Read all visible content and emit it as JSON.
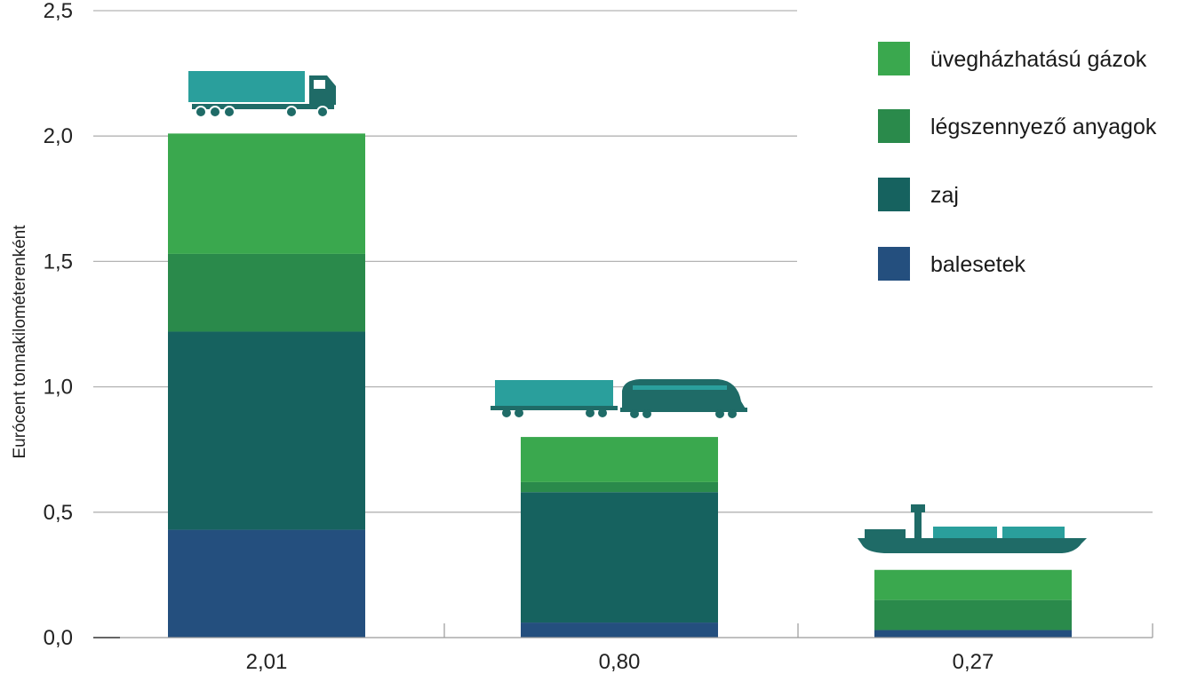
{
  "chart_data": {
    "type": "bar",
    "stacked": true,
    "ylabel": "Eurócent tonnakilométerenként",
    "ylim": [
      0,
      2.5
    ],
    "yticks": [
      "0,0",
      "0,5",
      "1,0",
      "1,5",
      "2,0",
      "2,5"
    ],
    "categories": [
      "2,01",
      "0,80",
      "0,27"
    ],
    "category_icons": [
      "truck-icon",
      "train-icon",
      "ship-icon"
    ],
    "grid": true,
    "legend_position": "top-right",
    "series": [
      {
        "name": "balesetek",
        "color": "#244f7e",
        "values": [
          0.43,
          0.06,
          0.03
        ]
      },
      {
        "name": "zaj",
        "color": "#16625f",
        "values": [
          0.79,
          0.52,
          0.0
        ]
      },
      {
        "name": "légszennyező anyagok",
        "color": "#2a8a4b",
        "values": [
          0.31,
          0.04,
          0.12
        ]
      },
      {
        "name": "üvegházhatású gázok",
        "color": "#3aa84e",
        "values": [
          0.48,
          0.18,
          0.12
        ]
      }
    ],
    "legend_order": [
      "üvegházhatású gázok",
      "légszennyező anyagok",
      "zaj",
      "balesetek"
    ],
    "icon_colors": {
      "primary": "#2a9f9c",
      "secondary": "#1f6b67"
    }
  }
}
